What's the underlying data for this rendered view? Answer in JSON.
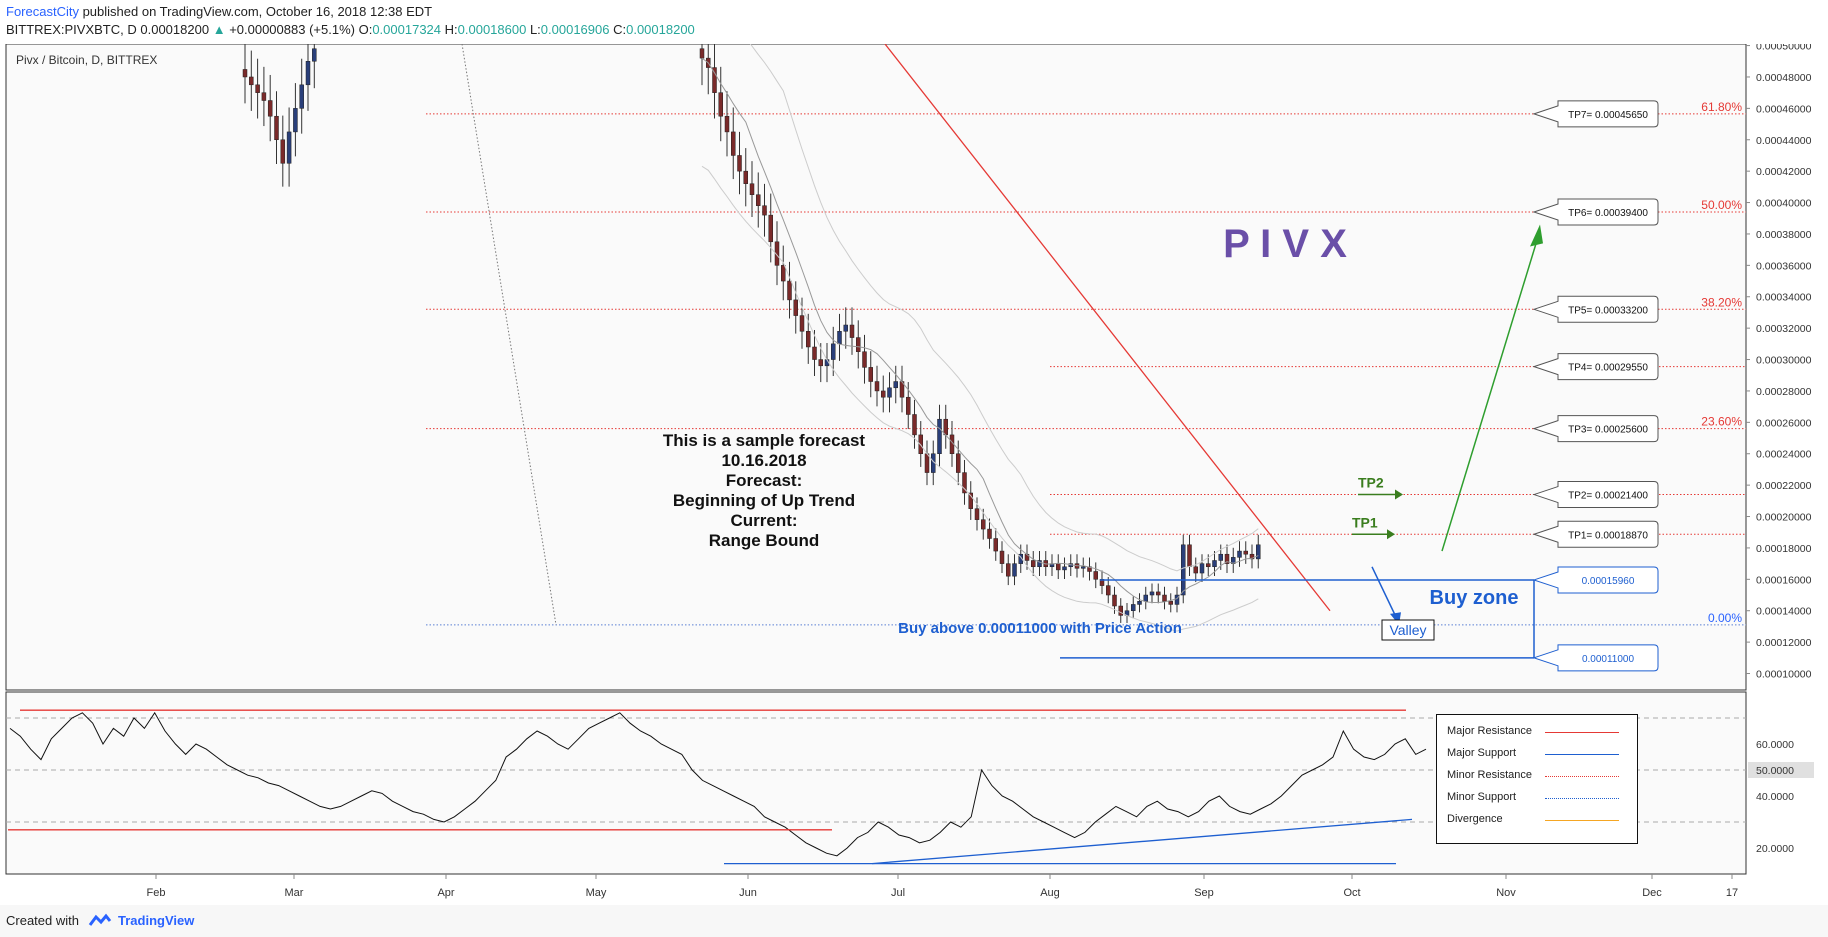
{
  "header": {
    "author": "ForecastCity",
    "published": " published on TradingView.com, October 16, 2018 12:38 EDT",
    "symbol": "BITTREX:PIVXBTC, D",
    "last": "0.00018200",
    "change": "+0.00000883 (+5.1%)",
    "o_label": "O:",
    "o_value": "0.00017324",
    "h_label": "H:",
    "h_value": "0.00018600",
    "l_label": "L:",
    "l_value": "0.00016906",
    "c_label": "C:",
    "c_value": "0.00018200"
  },
  "footer": {
    "created_with": "Created with",
    "brand": "TradingView"
  },
  "chart_data": {
    "type": "candlestick",
    "title": "Pivx / Bitcoin, D, BITTREX",
    "watermark": "P I V X",
    "y_range": [
      8.95e-05,
      0.000501
    ],
    "y_ticks": [
      "0.00050000",
      "0.00048000",
      "0.00046000",
      "0.00044000",
      "0.00042000",
      "0.00040000",
      "0.00038000",
      "0.00036000",
      "0.00034000",
      "0.00032000",
      "0.00030000",
      "0.00028000",
      "0.00026000",
      "0.00024000",
      "0.00022000",
      "0.00020000",
      "0.00018000",
      "0.00016000",
      "0.00014000",
      "0.00012000",
      "0.00010000"
    ],
    "x_ticks": [
      "Feb",
      "Mar",
      "Apr",
      "May",
      "Jun",
      "Jul",
      "Aug",
      "Sep",
      "Oct",
      "Nov",
      "Dec",
      "17"
    ],
    "fib_levels": [
      {
        "label": "61.80%",
        "value": 0.0004565
      },
      {
        "label": "50.00%",
        "value": 0.000394
      },
      {
        "label": "38.20%",
        "value": 0.000332
      },
      {
        "label": "23.60%",
        "value": 0.000256
      },
      {
        "label": "0.00%",
        "value": 0.000131
      }
    ],
    "targets": [
      {
        "label": "TP7= 0.00045650",
        "value": 0.0004565
      },
      {
        "label": "TP6= 0.00039400",
        "value": 0.000394
      },
      {
        "label": "TP5= 0.00033200",
        "value": 0.000332
      },
      {
        "label": "TP4= 0.00029550",
        "value": 0.0002955
      },
      {
        "label": "TP3= 0.00025600",
        "value": 0.000256
      },
      {
        "label": "TP2= 0.00021400",
        "value": 0.000214
      },
      {
        "label": "TP1= 0.00018870",
        "value": 0.0001887
      }
    ],
    "zone_labels": [
      {
        "label": "0.00015960",
        "value": 0.0001596
      },
      {
        "label": "0.00011000",
        "value": 0.00011
      }
    ],
    "tp_markers": [
      "TP2",
      "TP1"
    ],
    "annotations": {
      "forecast_lines": [
        "This is a sample forecast",
        "10.16.2018",
        "Forecast:",
        "Beginning of Up Trend",
        "Current:",
        "Range Bound"
      ],
      "buy_zone": "Buy zone",
      "valley": "Valley",
      "buy_above": "Buy above 0.00011000 with Price Action"
    },
    "candles_close": [
      0.00048,
      0.000475,
      0.00047,
      0.000465,
      0.000455,
      0.00044,
      0.000425,
      0.000445,
      0.00046,
      0.000475,
      0.00049,
      0.000498,
      0.000492,
      0.000486,
      0.00047,
      0.000455,
      0.000445,
      0.00043,
      0.00042,
      0.000412,
      0.000405,
      0.000398,
      0.000392,
      0.000375,
      0.00036,
      0.00035,
      0.000338,
      0.000328,
      0.000318,
      0.000308,
      0.0003,
      0.000296,
      0.0003,
      0.00031,
      0.000318,
      0.000322,
      0.000314,
      0.000305,
      0.000295,
      0.000286,
      0.00028,
      0.000276,
      0.000282,
      0.000286,
      0.000276,
      0.000265,
      0.000252,
      0.00024,
      0.000228,
      0.00024,
      0.000262,
      0.000252,
      0.00024,
      0.000228,
      0.000215,
      0.000205,
      0.000198,
      0.000192,
      0.000186,
      0.000178,
      0.00017,
      0.000162,
      0.00017,
      0.000176,
      0.000172,
      0.000168,
      0.000172,
      0.000168,
      0.00017,
      0.000166,
      0.000168,
      0.00017,
      0.000167,
      0.000168,
      0.000165,
      0.00016,
      0.000156,
      0.00015,
      0.000143,
      0.000137,
      0.00014,
      0.000144,
      0.000146,
      0.00015,
      0.000152,
      0.00015,
      0.000146,
      0.000144,
      0.00015,
      0.000182,
      0.000168,
      0.000164,
      0.00017,
      0.000168,
      0.000172,
      0.000176,
      0.00017,
      0.000174,
      0.000178,
      0.000176,
      0.000173,
      0.000182
    ],
    "rsi": {
      "ticks": [
        "60.0000",
        "50.0000",
        "40.0000",
        "20.0000"
      ],
      "range": [
        10,
        80
      ],
      "values": [
        66,
        63,
        58,
        54,
        62,
        66,
        70,
        72,
        68,
        60,
        66,
        63,
        70,
        66,
        72,
        65,
        60,
        56,
        60,
        58,
        55,
        52,
        50,
        48,
        47,
        45,
        44,
        42,
        40,
        38,
        36,
        35,
        36,
        38,
        40,
        42,
        41,
        38,
        36,
        34,
        33,
        31,
        30,
        32,
        35,
        38,
        42,
        46,
        55,
        58,
        62,
        65,
        63,
        60,
        58,
        62,
        66,
        68,
        70,
        72,
        68,
        65,
        63,
        60,
        58,
        56,
        50,
        46,
        44,
        42,
        40,
        38,
        36,
        32,
        30,
        28,
        25,
        22,
        20,
        18,
        17,
        20,
        24,
        26,
        30,
        28,
        25,
        24,
        22,
        23,
        26,
        30,
        28,
        32,
        50,
        44,
        40,
        38,
        35,
        32,
        30,
        28,
        26,
        24,
        26,
        30,
        33,
        36,
        34,
        32,
        36,
        38,
        35,
        34,
        32,
        34,
        38,
        40,
        36,
        34,
        33,
        35,
        37,
        40,
        44,
        48,
        50,
        52,
        55,
        65,
        58,
        55,
        54,
        56,
        60,
        62,
        56,
        58
      ]
    },
    "legend": [
      {
        "label": "Major Resistance",
        "color": "#e53935",
        "style": "solid"
      },
      {
        "label": "Major Support",
        "color": "#1e5fd0",
        "style": "solid"
      },
      {
        "label": "Minor Resistance",
        "color": "#e53935",
        "style": "dotted"
      },
      {
        "label": "Minor Support",
        "color": "#1e5fd0",
        "style": "dotted"
      },
      {
        "label": "Divergence",
        "color": "#f5a623",
        "style": "solid"
      }
    ]
  }
}
